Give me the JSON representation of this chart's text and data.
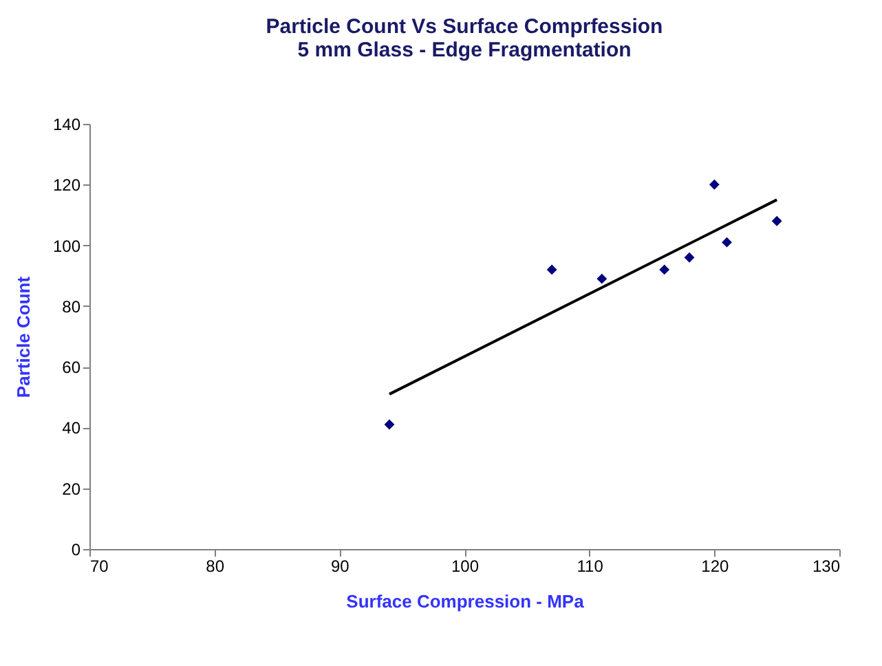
{
  "chart_data": {
    "type": "scatter",
    "title": [
      "Particle Count Vs Surface Comprfession",
      "5 mm Glass - Edge Fragmentation"
    ],
    "xlabel": "Surface Compression - MPa",
    "ylabel": "Particle Count",
    "xlim": [
      70,
      130
    ],
    "xticks": [
      70,
      80,
      90,
      100,
      110,
      120,
      130
    ],
    "ylim": [
      0,
      140
    ],
    "yticks": [
      0,
      20,
      40,
      60,
      80,
      100,
      120,
      140
    ],
    "grid": false,
    "series": [
      {
        "type": "scatter",
        "marker": "diamond",
        "color": "#00007f",
        "x": [
          94,
          107,
          111,
          116,
          118,
          120,
          121,
          125
        ],
        "values": [
          41,
          92,
          89,
          92,
          96,
          120,
          101,
          108
        ]
      },
      {
        "type": "line",
        "line_style": "solid",
        "color": "#000000",
        "x": [
          94,
          125
        ],
        "values": [
          51,
          115
        ]
      }
    ]
  }
}
